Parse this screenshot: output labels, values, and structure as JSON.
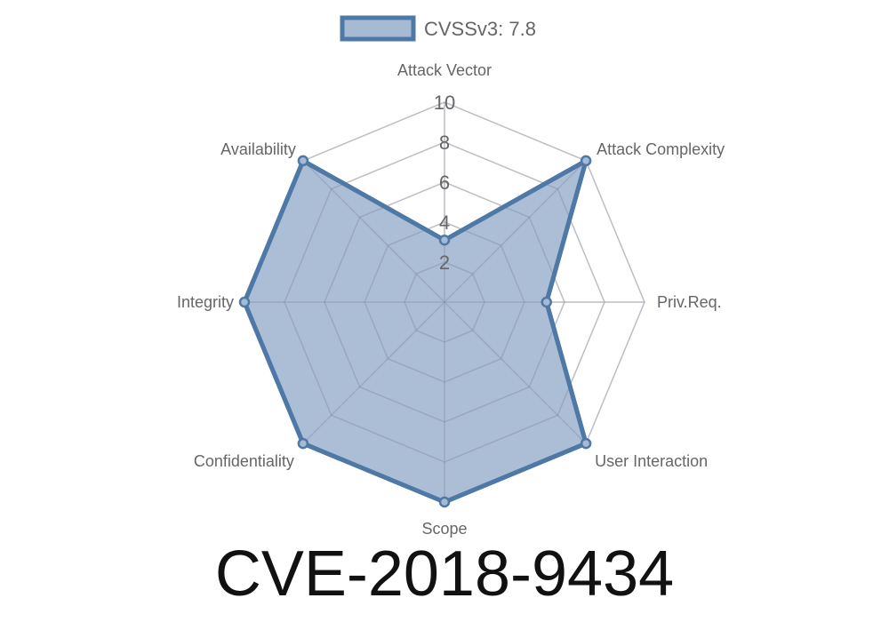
{
  "chart_data": {
    "type": "radar",
    "title": "CVE-2018-9434",
    "axes": [
      "Attack Vector",
      "Attack Complexity",
      "Priv.Req.",
      "User Interaction",
      "Scope",
      "Confidentiality",
      "Integrity",
      "Availability"
    ],
    "ticks": [
      "2",
      "4",
      "6",
      "8",
      "10"
    ],
    "rlim": [
      0,
      10
    ],
    "grid": true,
    "legend_position": "top",
    "series": [
      {
        "name": "CVSSv3: 7.8",
        "values": [
          3.1,
          10,
          5.1,
          10,
          10,
          10,
          10,
          10
        ]
      }
    ],
    "colors": {
      "line": "#4e79a7",
      "fill": "#a7bad3",
      "grid": "#e0e0e0"
    }
  }
}
